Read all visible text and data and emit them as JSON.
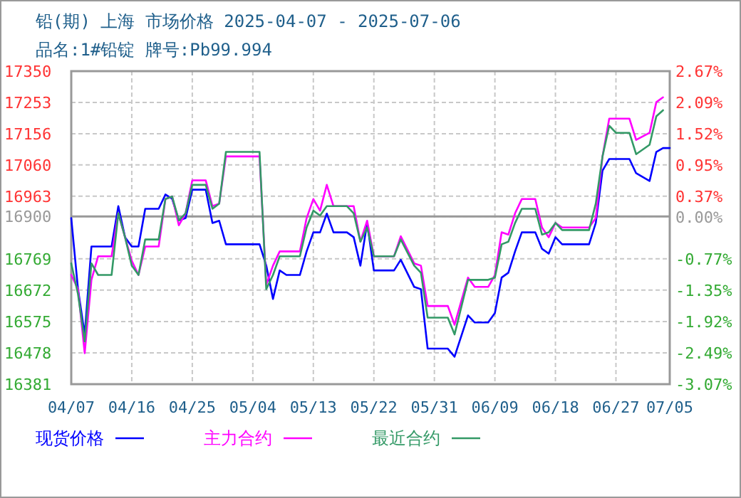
{
  "chart_data": {
    "type": "line",
    "title": "铅(期) 上海 市场价格 2025-04-07 - 2025-07-06",
    "subtitle": "品名:1#铅锭 牌号:Pb99.994",
    "xlim": [
      "2025-04-07",
      "2025-07-05"
    ],
    "xticks": [
      {
        "value": "2025-04-07",
        "label": "04/07"
      },
      {
        "value": "2025-04-16",
        "label": "04/16"
      },
      {
        "value": "2025-04-25",
        "label": "04/25"
      },
      {
        "value": "2025-05-04",
        "label": "05/04"
      },
      {
        "value": "2025-05-13",
        "label": "05/13"
      },
      {
        "value": "2025-05-22",
        "label": "05/22"
      },
      {
        "value": "2025-05-31",
        "label": "05/31"
      },
      {
        "value": "2025-06-09",
        "label": "06/09"
      },
      {
        "value": "2025-06-18",
        "label": "06/18"
      },
      {
        "value": "2025-06-27",
        "label": "06/27"
      },
      {
        "value": "2025-07-05",
        "label": "07/05"
      }
    ],
    "ylim": [
      16381,
      17350
    ],
    "yticks": [
      16381,
      16478,
      16575,
      16672,
      16769,
      16900,
      16963,
      17060,
      17156,
      17253,
      17350
    ],
    "y2lim": [
      -3.07,
      2.67
    ],
    "y2ticks": [
      {
        "value": -3.07,
        "label": "-3.07%"
      },
      {
        "value": -2.49,
        "label": "-2.49%"
      },
      {
        "value": -1.92,
        "label": "-1.92%"
      },
      {
        "value": -1.35,
        "label": "-1.35%"
      },
      {
        "value": -0.77,
        "label": "-0.77%"
      },
      {
        "value": 0,
        "label": "0.00%"
      },
      {
        "value": 0.37,
        "label": "0.37%"
      },
      {
        "value": 0.95,
        "label": "0.95%"
      },
      {
        "value": 1.52,
        "label": "1.52%"
      },
      {
        "value": 2.09,
        "label": "2.09%"
      },
      {
        "value": 2.67,
        "label": "2.67%"
      }
    ],
    "ref_lines": [
      {
        "axis": "y",
        "value": 16900,
        "color": "#999999"
      }
    ],
    "grid": true,
    "legend": "bottom",
    "marker": "none",
    "line_style": "solid",
    "series": [
      {
        "name": "现货价格",
        "color": "#0000ff",
        "x": [
          "2025-04-07",
          "2025-04-08",
          "2025-04-09",
          "2025-04-10",
          "2025-04-13",
          "2025-04-14",
          "2025-04-15",
          "2025-04-16",
          "2025-04-17",
          "2025-04-18",
          "2025-04-20",
          "2025-04-21",
          "2025-04-22",
          "2025-04-23",
          "2025-04-24",
          "2025-04-25",
          "2025-04-27",
          "2025-04-28",
          "2025-04-29",
          "2025-04-30",
          "2025-05-05",
          "2025-05-06",
          "2025-05-07",
          "2025-05-08",
          "2025-05-09",
          "2025-05-11",
          "2025-05-12",
          "2025-05-13",
          "2025-05-14",
          "2025-05-15",
          "2025-05-16",
          "2025-05-18",
          "2025-05-19",
          "2025-05-20",
          "2025-05-21",
          "2025-05-22",
          "2025-05-25",
          "2025-05-26",
          "2025-05-28",
          "2025-05-29",
          "2025-05-30",
          "2025-06-02",
          "2025-06-03",
          "2025-06-05",
          "2025-06-06",
          "2025-06-08",
          "2025-06-09",
          "2025-06-10",
          "2025-06-11",
          "2025-06-12",
          "2025-06-13",
          "2025-06-15",
          "2025-06-16",
          "2025-06-17",
          "2025-06-18",
          "2025-06-19",
          "2025-06-23",
          "2025-06-24",
          "2025-06-25",
          "2025-06-26",
          "2025-06-29",
          "2025-06-30",
          "2025-07-02",
          "2025-07-03",
          "2025-07-04",
          "2025-07-05"
        ],
        "values": [
          16895,
          16676,
          16535,
          16807,
          16807,
          16932,
          16836,
          16807,
          16807,
          16924,
          16924,
          16968,
          16955,
          16888,
          16895,
          16983,
          16983,
          16880,
          16887,
          16814,
          16814,
          16748,
          16645,
          16733,
          16719,
          16719,
          16792,
          16851,
          16851,
          16909,
          16851,
          16851,
          16836,
          16748,
          16880,
          16733,
          16733,
          16766,
          16682,
          16675,
          16491,
          16491,
          16466,
          16594,
          16572,
          16572,
          16601,
          16711,
          16726,
          16792,
          16851,
          16851,
          16800,
          16785,
          16836,
          16814,
          16814,
          16880,
          17042,
          17078,
          17078,
          17034,
          17010,
          17100,
          17112,
          17112
        ]
      },
      {
        "name": "主力合约",
        "color": "#ff00ff",
        "x": [
          "2025-04-07",
          "2025-04-08",
          "2025-04-09",
          "2025-04-10",
          "2025-04-11",
          "2025-04-13",
          "2025-04-14",
          "2025-04-15",
          "2025-04-16",
          "2025-04-17",
          "2025-04-18",
          "2025-04-20",
          "2025-04-21",
          "2025-04-22",
          "2025-04-23",
          "2025-04-24",
          "2025-04-25",
          "2025-04-27",
          "2025-04-28",
          "2025-04-29",
          "2025-04-30",
          "2025-05-05",
          "2025-05-06",
          "2025-05-07",
          "2025-05-08",
          "2025-05-11",
          "2025-05-12",
          "2025-05-13",
          "2025-05-14",
          "2025-05-15",
          "2025-05-16",
          "2025-05-19",
          "2025-05-20",
          "2025-05-21",
          "2025-05-22",
          "2025-05-25",
          "2025-05-26",
          "2025-05-28",
          "2025-05-29",
          "2025-05-30",
          "2025-06-02",
          "2025-06-03",
          "2025-06-05",
          "2025-06-06",
          "2025-06-08",
          "2025-06-09",
          "2025-06-10",
          "2025-06-11",
          "2025-06-12",
          "2025-06-13",
          "2025-06-15",
          "2025-06-16",
          "2025-06-17",
          "2025-06-18",
          "2025-06-19",
          "2025-06-23",
          "2025-06-24",
          "2025-06-25",
          "2025-06-26",
          "2025-06-29",
          "2025-06-30",
          "2025-07-02",
          "2025-07-03",
          "2025-07-04"
        ],
        "values": [
          16719,
          16675,
          16477,
          16704,
          16777,
          16777,
          16910,
          16836,
          16763,
          16719,
          16807,
          16807,
          16954,
          16962,
          16873,
          16910,
          17012,
          17012,
          16932,
          16940,
          17086,
          17086,
          16689,
          16748,
          16792,
          16792,
          16895,
          16954,
          16918,
          16998,
          16932,
          16932,
          16822,
          16887,
          16777,
          16777,
          16839,
          16755,
          16748,
          16623,
          16623,
          16565,
          16711,
          16682,
          16682,
          16719,
          16851,
          16844,
          16910,
          16954,
          16954,
          16866,
          16836,
          16880,
          16866,
          16866,
          16895,
          17086,
          17203,
          17203,
          17137,
          17159,
          17254,
          17269
        ]
      },
      {
        "name": "最近合约",
        "color": "#339966",
        "x": [
          "2025-04-07",
          "2025-04-08",
          "2025-04-09",
          "2025-04-10",
          "2025-04-11",
          "2025-04-13",
          "2025-04-14",
          "2025-04-15",
          "2025-04-16",
          "2025-04-17",
          "2025-04-18",
          "2025-04-20",
          "2025-04-21",
          "2025-04-22",
          "2025-04-23",
          "2025-04-24",
          "2025-04-25",
          "2025-04-27",
          "2025-04-28",
          "2025-04-29",
          "2025-04-30",
          "2025-05-05",
          "2025-05-06",
          "2025-05-07",
          "2025-05-08",
          "2025-05-11",
          "2025-05-12",
          "2025-05-13",
          "2025-05-14",
          "2025-05-15",
          "2025-05-18",
          "2025-05-19",
          "2025-05-20",
          "2025-05-21",
          "2025-05-22",
          "2025-05-25",
          "2025-05-26",
          "2025-05-28",
          "2025-05-29",
          "2025-05-30",
          "2025-06-02",
          "2025-06-03",
          "2025-06-05",
          "2025-06-06",
          "2025-06-08",
          "2025-06-09",
          "2025-06-10",
          "2025-06-11",
          "2025-06-12",
          "2025-06-13",
          "2025-06-15",
          "2025-06-16",
          "2025-06-17",
          "2025-06-18",
          "2025-06-19",
          "2025-06-23",
          "2025-06-24",
          "2025-06-25",
          "2025-06-26",
          "2025-06-27",
          "2025-06-29",
          "2025-06-30",
          "2025-07-02",
          "2025-07-03",
          "2025-07-04"
        ],
        "values": [
          16755,
          16660,
          16513,
          16755,
          16719,
          16719,
          16910,
          16836,
          16748,
          16719,
          16829,
          16829,
          16954,
          16962,
          16888,
          16910,
          16998,
          16998,
          16924,
          16940,
          17100,
          17100,
          16675,
          16719,
          16777,
          16777,
          16866,
          16918,
          16903,
          16932,
          16932,
          16910,
          16822,
          16866,
          16777,
          16777,
          16829,
          16748,
          16726,
          16587,
          16587,
          16535,
          16704,
          16704,
          16704,
          16711,
          16814,
          16822,
          16880,
          16924,
          16924,
          16844,
          16851,
          16880,
          16858,
          16858,
          16940,
          17086,
          17181,
          17159,
          17159,
          17093,
          17122,
          17210,
          17229
        ]
      }
    ]
  }
}
